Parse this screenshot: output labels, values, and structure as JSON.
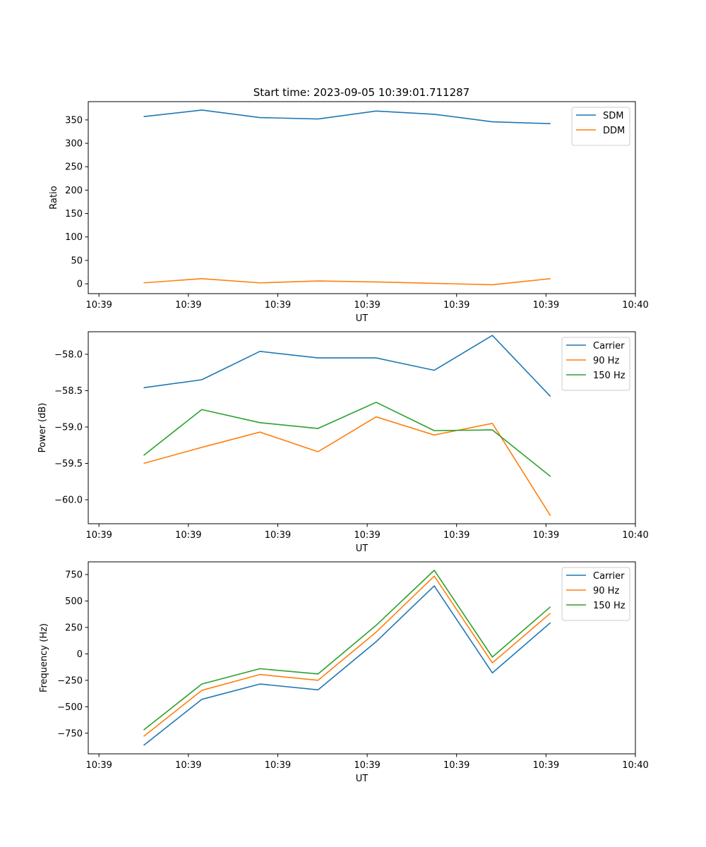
{
  "figure_title": "Start time: 2023-09-05 10:39:01.711287",
  "chart_data": [
    {
      "type": "line",
      "ylabel": "Ratio",
      "xlabel": "UT",
      "x_tick_labels": [
        "10:39",
        "10:39",
        "10:39",
        "10:39",
        "10:39",
        "10:39",
        "10:40"
      ],
      "x_ticks": [
        0,
        1,
        2,
        3,
        4,
        5,
        6
      ],
      "xlim": [
        -0.12,
        6.0
      ],
      "x": [
        0.5,
        1.15,
        1.8,
        2.45,
        3.1,
        3.75,
        4.4,
        5.05
      ],
      "ylim": [
        -21,
        389
      ],
      "y_ticks": [
        0,
        50,
        100,
        150,
        200,
        250,
        300,
        350
      ],
      "y_tick_labels": [
        "0",
        "50",
        "100",
        "150",
        "200",
        "250",
        "300",
        "350"
      ],
      "legend": "top-right",
      "series": [
        {
          "name": "SDM",
          "color": "#1f77b4",
          "values": [
            357,
            371,
            355,
            352,
            369,
            362,
            346,
            342
          ]
        },
        {
          "name": "DDM",
          "color": "#ff7f0e",
          "values": [
            2,
            11,
            2,
            6,
            4,
            1,
            -2,
            11
          ]
        }
      ]
    },
    {
      "type": "line",
      "ylabel": "Power (dB)",
      "xlabel": "UT",
      "x_tick_labels": [
        "10:39",
        "10:39",
        "10:39",
        "10:39",
        "10:39",
        "10:39",
        "10:40"
      ],
      "x_ticks": [
        0,
        1,
        2,
        3,
        4,
        5,
        6
      ],
      "xlim": [
        -0.12,
        6.0
      ],
      "x": [
        0.5,
        1.15,
        1.8,
        2.45,
        3.1,
        3.75,
        4.4,
        5.05
      ],
      "ylim": [
        -60.33,
        -57.69
      ],
      "y_ticks": [
        -60.0,
        -59.5,
        -59.0,
        -58.5,
        -58.0
      ],
      "y_tick_labels": [
        "−60.0",
        "−59.5",
        "−59.0",
        "−58.5",
        "−58.0"
      ],
      "legend": "top-right",
      "series": [
        {
          "name": "Carrier",
          "color": "#1f77b4",
          "values": [
            -58.46,
            -58.35,
            -57.96,
            -58.05,
            -58.05,
            -58.22,
            -57.74,
            -58.58
          ]
        },
        {
          "name": "90 Hz",
          "color": "#ff7f0e",
          "values": [
            -59.5,
            -59.28,
            -59.07,
            -59.34,
            -58.86,
            -59.11,
            -58.95,
            -60.22
          ]
        },
        {
          "name": "150 Hz",
          "color": "#2ca02c",
          "values": [
            -59.39,
            -58.76,
            -58.94,
            -59.02,
            -58.66,
            -59.05,
            -59.04,
            -59.68
          ]
        }
      ]
    },
    {
      "type": "line",
      "ylabel": "Frequency (Hz)",
      "xlabel": "UT",
      "x_tick_labels": [
        "10:39",
        "10:39",
        "10:39",
        "10:39",
        "10:39",
        "10:39",
        "10:40"
      ],
      "x_ticks": [
        0,
        1,
        2,
        3,
        4,
        5,
        6
      ],
      "xlim": [
        -0.12,
        6.0
      ],
      "x": [
        0.5,
        1.15,
        1.8,
        2.45,
        3.1,
        3.75,
        4.4,
        5.05
      ],
      "ylim": [
        -945,
        870
      ],
      "y_ticks": [
        -750,
        -500,
        -250,
        0,
        250,
        500,
        750
      ],
      "y_tick_labels": [
        "−750",
        "−500",
        "−250",
        "0",
        "250",
        "500",
        "750"
      ],
      "legend": "top-right",
      "series": [
        {
          "name": "Carrier",
          "color": "#1f77b4",
          "values": [
            -865,
            -430,
            -285,
            -340,
            115,
            643,
            -180,
            295
          ]
        },
        {
          "name": "90 Hz",
          "color": "#ff7f0e",
          "values": [
            -780,
            -345,
            -195,
            -250,
            205,
            735,
            -85,
            385
          ]
        },
        {
          "name": "150 Hz",
          "color": "#2ca02c",
          "values": [
            -720,
            -285,
            -140,
            -190,
            270,
            790,
            -30,
            445
          ]
        }
      ]
    }
  ]
}
